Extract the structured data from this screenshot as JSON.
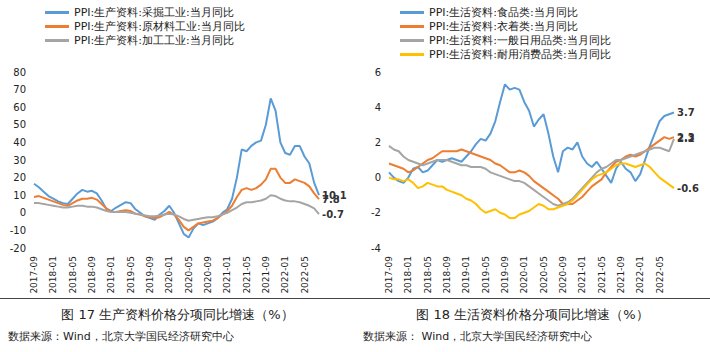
{
  "chart_data": [
    {
      "type": "line",
      "title": "图 17 生产资料价格分项同比增速（%）",
      "source": "数据来源：Wind，北京大学国民经济研究中心",
      "categories": [
        "2017-09",
        null,
        null,
        null,
        "2018-01",
        null,
        null,
        null,
        "2018-05",
        null,
        null,
        null,
        "2018-09",
        null,
        null,
        null,
        "2019-01",
        null,
        null,
        null,
        "2019-05",
        null,
        null,
        null,
        "2019-09",
        null,
        null,
        null,
        "2020-01",
        null,
        null,
        null,
        "2020-05",
        null,
        null,
        null,
        "2020-09",
        null,
        null,
        null,
        "2021-01",
        null,
        null,
        null,
        "2021-05",
        null,
        null,
        null,
        "2021-09",
        null,
        null,
        null,
        "2022-01",
        null,
        null,
        null,
        "2022-05",
        null,
        null,
        null
      ],
      "ylim": [
        -20,
        80
      ],
      "yticks": [
        -20,
        -10,
        0,
        10,
        20,
        30,
        40,
        50,
        60,
        70,
        80
      ],
      "grid": false,
      "legend": "top-left",
      "series": [
        {
          "name": "PPI:生产资料:采掘工业:当月同比",
          "color": "#5b9bd5",
          "values": [
            16.5,
            14.5,
            12,
            9.5,
            8,
            6.5,
            5.5,
            5,
            8,
            11,
            13,
            12,
            12.5,
            11,
            7,
            2,
            1,
            3,
            4.5,
            6,
            5.5,
            2,
            0,
            -2,
            -3,
            -4,
            -1,
            1,
            4,
            0,
            -6,
            -12,
            -14,
            -9,
            -6,
            -7,
            -6,
            -5,
            -3,
            0,
            2,
            8,
            20,
            36,
            35,
            38,
            40,
            41,
            50,
            65,
            58,
            40,
            34,
            33,
            38,
            38,
            32,
            28,
            17,
            10.1
          ],
          "value_labels": [
            null,
            null,
            null,
            null,
            null,
            null,
            null,
            null,
            null,
            null,
            null,
            null,
            null,
            null,
            null,
            null,
            null,
            null,
            null,
            null,
            null,
            null,
            null,
            null,
            null,
            null,
            null,
            null,
            null,
            null,
            null,
            null,
            null,
            null,
            null,
            null,
            null,
            null,
            null,
            null,
            null,
            null,
            null,
            null,
            null,
            null,
            null,
            null,
            null,
            null,
            null,
            null,
            null,
            null,
            null,
            null,
            null,
            null,
            null,
            "10.1"
          ]
        },
        {
          "name": "PPI:生产资料:原材料工业:当月同比",
          "color": "#ed7d31",
          "values": [
            9,
            9.5,
            8.5,
            7.5,
            6.5,
            5.5,
            4.5,
            4,
            5.5,
            7,
            8,
            8,
            8.5,
            7.5,
            5,
            2.5,
            0.5,
            0.5,
            1,
            1.5,
            1,
            -0.5,
            -1,
            -2,
            -2.5,
            -3,
            -2.5,
            -1,
            0.5,
            -1,
            -4,
            -8,
            -10,
            -8,
            -6,
            -5.5,
            -5,
            -4.5,
            -3,
            -1,
            1,
            4,
            9,
            13,
            14,
            13,
            14,
            16,
            19,
            25,
            25,
            20,
            17,
            17,
            19,
            18,
            17,
            15,
            11,
            7.8
          ],
          "value_labels": [
            null,
            null,
            null,
            null,
            null,
            null,
            null,
            null,
            null,
            null,
            null,
            null,
            null,
            null,
            null,
            null,
            null,
            null,
            null,
            null,
            null,
            null,
            null,
            null,
            null,
            null,
            null,
            null,
            null,
            null,
            null,
            null,
            null,
            null,
            null,
            null,
            null,
            null,
            null,
            null,
            null,
            null,
            null,
            null,
            null,
            null,
            null,
            null,
            null,
            null,
            null,
            null,
            null,
            null,
            null,
            null,
            null,
            null,
            null,
            "7.8"
          ]
        },
        {
          "name": "PPI:生产资料:加工工业:当月同比",
          "color": "#a5a5a5",
          "values": [
            5.5,
            5.5,
            5,
            4.5,
            4,
            3.5,
            3,
            3,
            3.5,
            4,
            4,
            3.5,
            3.5,
            3,
            2,
            1,
            0.5,
            0.5,
            0.5,
            0.5,
            0,
            -0.5,
            -1,
            -1.5,
            -2,
            -2,
            -1.5,
            -1,
            -0.5,
            -1,
            -2,
            -3.5,
            -4.5,
            -4,
            -3.5,
            -3,
            -2.5,
            -2.5,
            -2,
            -1,
            0,
            1.5,
            3,
            5,
            6,
            6,
            6.5,
            7,
            8,
            10,
            9.5,
            8,
            7,
            6.5,
            6.5,
            6,
            5,
            4,
            2.5,
            -0.7
          ],
          "value_labels": [
            null,
            null,
            null,
            null,
            null,
            null,
            null,
            null,
            null,
            null,
            null,
            null,
            null,
            null,
            null,
            null,
            null,
            null,
            null,
            null,
            null,
            null,
            null,
            null,
            null,
            null,
            null,
            null,
            null,
            null,
            null,
            null,
            null,
            null,
            null,
            null,
            null,
            null,
            null,
            null,
            null,
            null,
            null,
            null,
            null,
            null,
            null,
            null,
            null,
            null,
            null,
            null,
            null,
            null,
            null,
            null,
            null,
            null,
            null,
            "-0.7"
          ]
        }
      ]
    },
    {
      "type": "line",
      "title": "图 18 生活资料价格分项同比增速（%）",
      "source": "数据来源： Wind，北京大学国民经济研究中心",
      "categories": [
        "2017-09",
        null,
        null,
        null,
        "2018-01",
        null,
        null,
        null,
        "2018-05",
        null,
        null,
        null,
        "2018-09",
        null,
        null,
        null,
        "2019-01",
        null,
        null,
        null,
        "2019-05",
        null,
        null,
        null,
        "2019-09",
        null,
        null,
        null,
        "2020-01",
        null,
        null,
        null,
        "2020-05",
        null,
        null,
        null,
        "2020-09",
        null,
        null,
        null,
        "2021-01",
        null,
        null,
        null,
        "2021-05",
        null,
        null,
        null,
        "2021-09",
        null,
        null,
        null,
        "2022-01",
        null,
        null,
        null,
        "2022-05",
        null,
        null,
        null
      ],
      "ylim": [
        -4,
        6
      ],
      "yticks": [
        -4,
        -2,
        0,
        2,
        4,
        6
      ],
      "grid": false,
      "legend": "top-left",
      "series": [
        {
          "name": "PPI:生活资料:食品类:当月同比",
          "color": "#5b9bd5",
          "values": [
            0.3,
            0.0,
            -0.2,
            -0.3,
            0.0,
            0.5,
            0.6,
            0.3,
            0.4,
            0.7,
            1.0,
            0.9,
            1.0,
            1.1,
            1.0,
            0.9,
            1.2,
            1.5,
            1.9,
            2.2,
            2.1,
            2.5,
            3.2,
            4.3,
            5.3,
            5.0,
            5.1,
            5.0,
            4.3,
            3.8,
            2.9,
            3.3,
            3.6,
            2.5,
            1.2,
            0.3,
            1.5,
            1.7,
            1.6,
            2.0,
            1.2,
            0.8,
            0.6,
            0.9,
            0.5,
            0.1,
            -0.3,
            0.5,
            0.9,
            0.5,
            0.3,
            -0.2,
            0.2,
            1.0,
            1.8,
            2.5,
            3.2,
            3.5,
            3.6,
            3.7
          ],
          "value_labels": [
            null,
            null,
            null,
            null,
            null,
            null,
            null,
            null,
            null,
            null,
            null,
            null,
            null,
            null,
            null,
            null,
            null,
            null,
            null,
            null,
            null,
            null,
            null,
            null,
            null,
            null,
            null,
            null,
            null,
            null,
            null,
            null,
            null,
            null,
            null,
            null,
            null,
            null,
            null,
            null,
            null,
            null,
            null,
            null,
            null,
            null,
            null,
            null,
            null,
            null,
            null,
            null,
            null,
            null,
            null,
            null,
            null,
            null,
            null,
            "3.7"
          ]
        },
        {
          "name": "PPI:生活资料:衣着类:当月同比",
          "color": "#ed7d31",
          "values": [
            0.8,
            0.7,
            0.6,
            0.5,
            0.3,
            0.4,
            0.6,
            0.8,
            1.0,
            1.1,
            1.3,
            1.5,
            1.5,
            1.5,
            1.5,
            1.6,
            1.5,
            1.4,
            1.3,
            1.2,
            1.1,
            1.0,
            0.8,
            0.7,
            0.5,
            0.3,
            0.3,
            0.4,
            0.3,
            0.1,
            -0.2,
            -0.4,
            -0.6,
            -0.8,
            -1.0,
            -1.2,
            -1.5,
            -1.5,
            -1.5,
            -1.3,
            -1.1,
            -0.8,
            -0.5,
            -0.3,
            -0.1,
            0.3,
            0.6,
            0.9,
            1.0,
            1.2,
            1.3,
            1.2,
            1.3,
            1.5,
            1.7,
            1.9,
            2.1,
            2.3,
            2.2,
            2.3
          ],
          "value_labels": [
            null,
            null,
            null,
            null,
            null,
            null,
            null,
            null,
            null,
            null,
            null,
            null,
            null,
            null,
            null,
            null,
            null,
            null,
            null,
            null,
            null,
            null,
            null,
            null,
            null,
            null,
            null,
            null,
            null,
            null,
            null,
            null,
            null,
            null,
            null,
            null,
            null,
            null,
            null,
            null,
            null,
            null,
            null,
            null,
            null,
            null,
            null,
            null,
            null,
            null,
            null,
            null,
            null,
            null,
            null,
            null,
            null,
            null,
            null,
            "2.3"
          ]
        },
        {
          "name": "PPI:生活资料:一般日用品类:当月同比",
          "color": "#a5a5a5",
          "values": [
            1.8,
            1.6,
            1.5,
            1.2,
            1.0,
            0.9,
            0.8,
            0.7,
            0.8,
            0.9,
            1.0,
            1.0,
            1.0,
            0.9,
            0.8,
            0.7,
            0.7,
            0.6,
            0.6,
            0.6,
            0.5,
            0.3,
            0.2,
            0.1,
            0.0,
            -0.1,
            -0.2,
            -0.2,
            -0.3,
            -0.5,
            -0.7,
            -0.9,
            -1.1,
            -1.3,
            -1.5,
            -1.6,
            -1.5,
            -1.4,
            -1.2,
            -0.9,
            -0.6,
            -0.3,
            0.0,
            0.3,
            0.5,
            0.6,
            0.8,
            1.0,
            1.0,
            1.1,
            1.2,
            1.3,
            1.4,
            1.5,
            1.6,
            1.7,
            1.7,
            1.6,
            1.5,
            2.2
          ],
          "value_labels": [
            null,
            null,
            null,
            null,
            null,
            null,
            null,
            null,
            null,
            null,
            null,
            null,
            null,
            null,
            null,
            null,
            null,
            null,
            null,
            null,
            null,
            null,
            null,
            null,
            null,
            null,
            null,
            null,
            null,
            null,
            null,
            null,
            null,
            null,
            null,
            null,
            null,
            null,
            null,
            null,
            null,
            null,
            null,
            null,
            null,
            null,
            null,
            null,
            null,
            null,
            null,
            null,
            null,
            null,
            null,
            null,
            null,
            null,
            null,
            "2.2"
          ]
        },
        {
          "name": "PPI:生活资料:耐用消费品类:当月同比",
          "color": "#ffc000",
          "values": [
            0.0,
            -0.1,
            -0.1,
            -0.2,
            -0.1,
            -0.3,
            -0.6,
            -0.5,
            -0.3,
            -0.4,
            -0.5,
            -0.5,
            -0.7,
            -0.8,
            -0.9,
            -1.0,
            -1.2,
            -1.3,
            -1.5,
            -1.8,
            -2.0,
            -1.9,
            -1.8,
            -2.0,
            -2.1,
            -2.3,
            -2.3,
            -2.1,
            -2.0,
            -1.9,
            -1.7,
            -1.5,
            -1.6,
            -1.8,
            -1.8,
            -1.7,
            -1.6,
            -1.5,
            -1.3,
            -1.0,
            -0.7,
            -0.4,
            -0.1,
            0.1,
            0.2,
            0.3,
            0.5,
            0.7,
            0.8,
            0.8,
            0.7,
            0.6,
            0.7,
            0.8,
            0.6,
            0.3,
            0.0,
            -0.2,
            -0.4,
            -0.6
          ],
          "value_labels": [
            null,
            null,
            null,
            null,
            null,
            null,
            null,
            null,
            null,
            null,
            null,
            null,
            null,
            null,
            null,
            null,
            null,
            null,
            null,
            null,
            null,
            null,
            null,
            null,
            null,
            null,
            null,
            null,
            null,
            null,
            null,
            null,
            null,
            null,
            null,
            null,
            null,
            null,
            null,
            null,
            null,
            null,
            null,
            null,
            null,
            null,
            null,
            null,
            null,
            null,
            null,
            null,
            null,
            null,
            null,
            null,
            null,
            null,
            null,
            "-0.6"
          ]
        }
      ]
    }
  ]
}
